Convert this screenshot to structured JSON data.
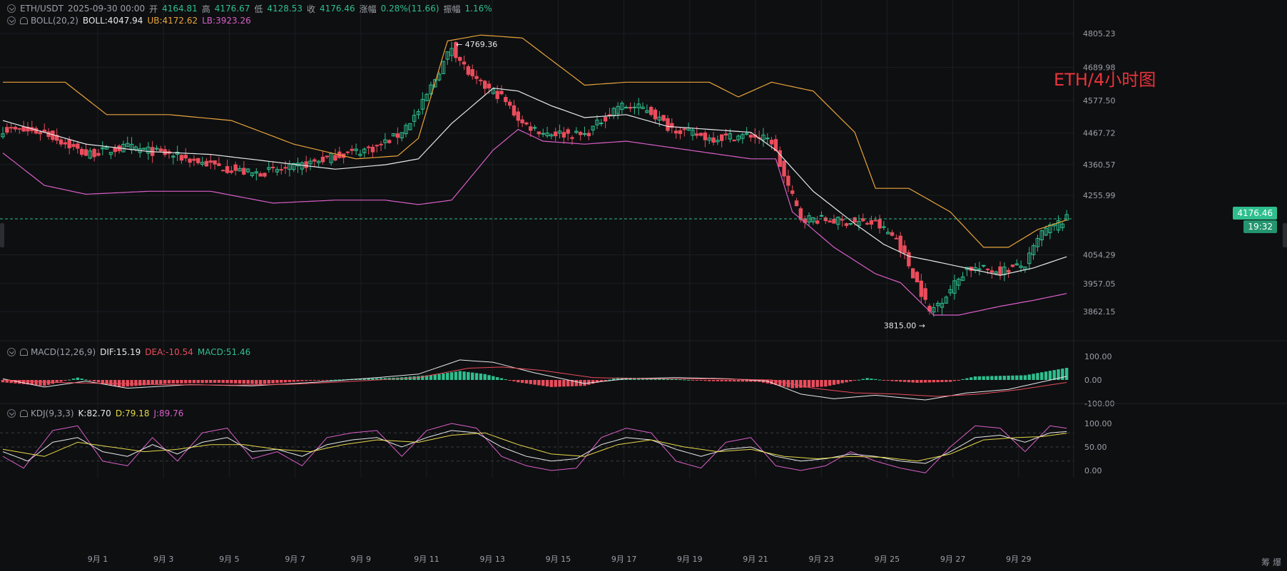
{
  "symbol_bar": {
    "pair": "ETH/USDT",
    "datetime": "2025-09-30 00:00",
    "open_label": "开",
    "open_value": "4164.81",
    "high_label": "高",
    "high_value": "4176.67",
    "low_label": "低",
    "low_value": "4128.53",
    "close_label": "收",
    "close_value": "4176.46",
    "change_label": "涨幅",
    "change_value": "0.28%(11.66)",
    "amplitude_label": "振幅",
    "amplitude_value": "1.16%"
  },
  "boll": {
    "label": "BOLL(20,2)",
    "mid": "BOLL:4047.94",
    "ub": "UB:4172.62",
    "lb": "LB:3923.26"
  },
  "macd": {
    "label": "MACD(12,26,9)",
    "dif": "DIF:15.19",
    "dea": "DEA:-10.54",
    "macd": "MACD:51.46"
  },
  "kdj": {
    "label": "KDJ(9,3,3)",
    "k": "K:82.70",
    "d": "D:79.18",
    "j": "J:89.76"
  },
  "watermark": "ETH/4小时图",
  "current_price": "4176.46",
  "countdown": "19:32",
  "high_annotation": "4769.36",
  "low_annotation": "3815.00",
  "corner_labels": "筹 爆",
  "colors": {
    "up": "#2fbf8e",
    "down": "#ea4d5c",
    "mid": "#e6e8eb",
    "ub": "#e9a53a",
    "lb": "#d95fc8",
    "dea": "#ea4d5c",
    "k": "#e6e8eb",
    "d": "#e6d84a",
    "j": "#d95fc8",
    "price_tag": "#2fbf8e",
    "grid": "#1c1e22"
  },
  "chart_data": {
    "type": "candlestick",
    "price_axis_ticks": [
      "4805.23",
      "4689.98",
      "4577.50",
      "4467.72",
      "4360.57",
      "4255.99",
      "4054.29",
      "3957.05",
      "3862.15"
    ],
    "macd_axis_ticks": [
      "100.00",
      "0.00",
      "-100.00"
    ],
    "kdj_axis_ticks": [
      "100.00",
      "50.00",
      "0.00"
    ],
    "x_ticks": [
      "9月 1",
      "9月 3",
      "9月 5",
      "9月 7",
      "9月 9",
      "9月 11",
      "9月 13",
      "9月 15",
      "9月 17",
      "9月 19",
      "9月 21",
      "9月 23",
      "9月 25",
      "9月 27",
      "9月 29"
    ],
    "close_keypoints": [
      [
        0,
        4480
      ],
      [
        10,
        4470
      ],
      [
        20,
        4395
      ],
      [
        30,
        4420
      ],
      [
        40,
        4395
      ],
      [
        50,
        4360
      ],
      [
        60,
        4330
      ],
      [
        70,
        4350
      ],
      [
        80,
        4390
      ],
      [
        90,
        4420
      ],
      [
        95,
        4460
      ],
      [
        100,
        4540
      ],
      [
        105,
        4680
      ],
      [
        108,
        4760
      ],
      [
        113,
        4650
      ],
      [
        120,
        4590
      ],
      [
        125,
        4500
      ],
      [
        130,
        4470
      ],
      [
        140,
        4460
      ],
      [
        148,
        4560
      ],
      [
        155,
        4550
      ],
      [
        160,
        4490
      ],
      [
        170,
        4450
      ],
      [
        180,
        4460
      ],
      [
        185,
        4440
      ],
      [
        188,
        4320
      ],
      [
        192,
        4180
      ],
      [
        200,
        4170
      ],
      [
        210,
        4160
      ],
      [
        215,
        4110
      ],
      [
        220,
        3960
      ],
      [
        223,
        3860
      ],
      [
        227,
        3920
      ],
      [
        232,
        4010
      ],
      [
        240,
        4000
      ],
      [
        246,
        4020
      ],
      [
        250,
        4130
      ],
      [
        256,
        4176.46
      ]
    ],
    "ub_keypoints": [
      [
        0,
        4640
      ],
      [
        15,
        4640
      ],
      [
        25,
        4530
      ],
      [
        40,
        4530
      ],
      [
        55,
        4510
      ],
      [
        70,
        4430
      ],
      [
        85,
        4380
      ],
      [
        95,
        4390
      ],
      [
        100,
        4450
      ],
      [
        107,
        4780
      ],
      [
        115,
        4800
      ],
      [
        125,
        4790
      ],
      [
        140,
        4630
      ],
      [
        150,
        4640
      ],
      [
        170,
        4640
      ],
      [
        177,
        4590
      ],
      [
        185,
        4640
      ],
      [
        195,
        4610
      ],
      [
        205,
        4470
      ],
      [
        210,
        4280
      ],
      [
        218,
        4280
      ],
      [
        228,
        4200
      ],
      [
        236,
        4080
      ],
      [
        242,
        4080
      ],
      [
        249,
        4140
      ],
      [
        256,
        4172.62
      ]
    ],
    "mid_keypoints": [
      [
        0,
        4510
      ],
      [
        10,
        4470
      ],
      [
        20,
        4430
      ],
      [
        35,
        4405
      ],
      [
        50,
        4395
      ],
      [
        65,
        4370
      ],
      [
        80,
        4345
      ],
      [
        92,
        4360
      ],
      [
        100,
        4380
      ],
      [
        108,
        4500
      ],
      [
        118,
        4620
      ],
      [
        124,
        4610
      ],
      [
        132,
        4560
      ],
      [
        140,
        4520
      ],
      [
        150,
        4530
      ],
      [
        160,
        4490
      ],
      [
        170,
        4480
      ],
      [
        180,
        4470
      ],
      [
        186,
        4410
      ],
      [
        195,
        4270
      ],
      [
        205,
        4160
      ],
      [
        212,
        4090
      ],
      [
        218,
        4050
      ],
      [
        225,
        4030
      ],
      [
        235,
        4000
      ],
      [
        240,
        3985
      ],
      [
        248,
        4010
      ],
      [
        256,
        4047.94
      ]
    ],
    "lb_keypoints": [
      [
        0,
        4400
      ],
      [
        10,
        4290
      ],
      [
        20,
        4260
      ],
      [
        35,
        4270
      ],
      [
        50,
        4270
      ],
      [
        65,
        4230
      ],
      [
        80,
        4240
      ],
      [
        92,
        4240
      ],
      [
        100,
        4225
      ],
      [
        108,
        4240
      ],
      [
        118,
        4410
      ],
      [
        124,
        4480
      ],
      [
        130,
        4440
      ],
      [
        140,
        4430
      ],
      [
        150,
        4440
      ],
      [
        160,
        4420
      ],
      [
        170,
        4400
      ],
      [
        180,
        4380
      ],
      [
        186,
        4380
      ],
      [
        190,
        4200
      ],
      [
        200,
        4080
      ],
      [
        210,
        3990
      ],
      [
        216,
        3960
      ],
      [
        224,
        3850
      ],
      [
        230,
        3850
      ],
      [
        240,
        3880
      ],
      [
        248,
        3900
      ],
      [
        256,
        3923.26
      ]
    ],
    "macd_hist_keypoints": [
      [
        0,
        -10
      ],
      [
        10,
        -25
      ],
      [
        18,
        10
      ],
      [
        28,
        -30
      ],
      [
        40,
        -15
      ],
      [
        52,
        -12
      ],
      [
        62,
        -18
      ],
      [
        72,
        -5
      ],
      [
        85,
        5
      ],
      [
        95,
        10
      ],
      [
        104,
        22
      ],
      [
        110,
        38
      ],
      [
        116,
        25
      ],
      [
        124,
        -10
      ],
      [
        132,
        -30
      ],
      [
        140,
        -25
      ],
      [
        148,
        10
      ],
      [
        158,
        8
      ],
      [
        170,
        -5
      ],
      [
        182,
        -8
      ],
      [
        190,
        -35
      ],
      [
        198,
        -28
      ],
      [
        208,
        8
      ],
      [
        214,
        -5
      ],
      [
        220,
        -12
      ],
      [
        228,
        -8
      ],
      [
        234,
        15
      ],
      [
        246,
        20
      ],
      [
        256,
        51.46
      ]
    ],
    "dif_keypoints": [
      [
        0,
        5
      ],
      [
        10,
        -30
      ],
      [
        20,
        -5
      ],
      [
        30,
        -35
      ],
      [
        45,
        -20
      ],
      [
        60,
        -25
      ],
      [
        75,
        -10
      ],
      [
        90,
        10
      ],
      [
        100,
        25
      ],
      [
        110,
        85
      ],
      [
        118,
        75
      ],
      [
        128,
        30
      ],
      [
        140,
        -15
      ],
      [
        150,
        5
      ],
      [
        162,
        10
      ],
      [
        175,
        5
      ],
      [
        184,
        -5
      ],
      [
        192,
        -60
      ],
      [
        200,
        -80
      ],
      [
        210,
        -65
      ],
      [
        216,
        -75
      ],
      [
        222,
        -85
      ],
      [
        232,
        -55
      ],
      [
        242,
        -40
      ],
      [
        256,
        15.19
      ]
    ],
    "dea_keypoints": [
      [
        0,
        0
      ],
      [
        12,
        -10
      ],
      [
        25,
        -15
      ],
      [
        40,
        -20
      ],
      [
        55,
        -22
      ],
      [
        70,
        -18
      ],
      [
        85,
        -5
      ],
      [
        100,
        10
      ],
      [
        112,
        50
      ],
      [
        120,
        55
      ],
      [
        130,
        40
      ],
      [
        142,
        10
      ],
      [
        155,
        5
      ],
      [
        170,
        5
      ],
      [
        185,
        0
      ],
      [
        195,
        -35
      ],
      [
        205,
        -55
      ],
      [
        215,
        -60
      ],
      [
        225,
        -70
      ],
      [
        235,
        -60
      ],
      [
        245,
        -40
      ],
      [
        256,
        -10.54
      ]
    ],
    "k_keypoints": [
      [
        0,
        40
      ],
      [
        6,
        20
      ],
      [
        12,
        60
      ],
      [
        18,
        70
      ],
      [
        24,
        40
      ],
      [
        30,
        30
      ],
      [
        36,
        55
      ],
      [
        42,
        35
      ],
      [
        48,
        60
      ],
      [
        54,
        70
      ],
      [
        60,
        40
      ],
      [
        66,
        45
      ],
      [
        72,
        30
      ],
      [
        78,
        55
      ],
      [
        84,
        65
      ],
      [
        90,
        70
      ],
      [
        96,
        50
      ],
      [
        102,
        70
      ],
      [
        108,
        85
      ],
      [
        114,
        80
      ],
      [
        120,
        50
      ],
      [
        126,
        30
      ],
      [
        132,
        20
      ],
      [
        138,
        25
      ],
      [
        144,
        55
      ],
      [
        150,
        70
      ],
      [
        156,
        65
      ],
      [
        162,
        45
      ],
      [
        168,
        30
      ],
      [
        174,
        45
      ],
      [
        180,
        50
      ],
      [
        186,
        30
      ],
      [
        192,
        20
      ],
      [
        198,
        25
      ],
      [
        204,
        35
      ],
      [
        210,
        30
      ],
      [
        216,
        20
      ],
      [
        222,
        15
      ],
      [
        228,
        40
      ],
      [
        234,
        70
      ],
      [
        240,
        75
      ],
      [
        246,
        60
      ],
      [
        252,
        80
      ],
      [
        256,
        82.7
      ]
    ],
    "d_keypoints": [
      [
        0,
        45
      ],
      [
        10,
        30
      ],
      [
        18,
        60
      ],
      [
        26,
        50
      ],
      [
        34,
        40
      ],
      [
        42,
        45
      ],
      [
        50,
        55
      ],
      [
        58,
        55
      ],
      [
        66,
        45
      ],
      [
        74,
        40
      ],
      [
        82,
        55
      ],
      [
        90,
        65
      ],
      [
        100,
        60
      ],
      [
        108,
        75
      ],
      [
        116,
        80
      ],
      [
        124,
        55
      ],
      [
        132,
        35
      ],
      [
        140,
        30
      ],
      [
        148,
        55
      ],
      [
        156,
        65
      ],
      [
        164,
        50
      ],
      [
        172,
        40
      ],
      [
        180,
        45
      ],
      [
        188,
        30
      ],
      [
        196,
        25
      ],
      [
        204,
        30
      ],
      [
        212,
        28
      ],
      [
        220,
        20
      ],
      [
        228,
        35
      ],
      [
        236,
        65
      ],
      [
        244,
        70
      ],
      [
        250,
        72
      ],
      [
        256,
        79.18
      ]
    ],
    "j_keypoints": [
      [
        0,
        30
      ],
      [
        5,
        5
      ],
      [
        12,
        85
      ],
      [
        18,
        95
      ],
      [
        24,
        20
      ],
      [
        30,
        10
      ],
      [
        36,
        70
      ],
      [
        42,
        20
      ],
      [
        48,
        80
      ],
      [
        54,
        90
      ],
      [
        60,
        25
      ],
      [
        66,
        40
      ],
      [
        72,
        10
      ],
      [
        78,
        70
      ],
      [
        84,
        80
      ],
      [
        90,
        85
      ],
      [
        96,
        30
      ],
      [
        102,
        85
      ],
      [
        108,
        100
      ],
      [
        114,
        90
      ],
      [
        120,
        30
      ],
      [
        126,
        10
      ],
      [
        132,
        0
      ],
      [
        138,
        5
      ],
      [
        144,
        70
      ],
      [
        150,
        90
      ],
      [
        156,
        80
      ],
      [
        162,
        20
      ],
      [
        168,
        5
      ],
      [
        174,
        60
      ],
      [
        180,
        70
      ],
      [
        186,
        10
      ],
      [
        192,
        0
      ],
      [
        198,
        10
      ],
      [
        204,
        40
      ],
      [
        210,
        20
      ],
      [
        216,
        5
      ],
      [
        222,
        -5
      ],
      [
        228,
        50
      ],
      [
        234,
        95
      ],
      [
        240,
        90
      ],
      [
        246,
        40
      ],
      [
        252,
        95
      ],
      [
        256,
        89.76
      ]
    ]
  }
}
